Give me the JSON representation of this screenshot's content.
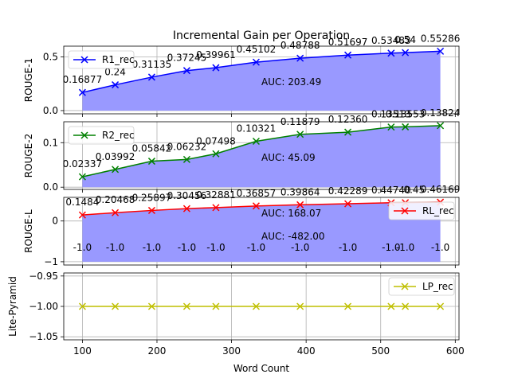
{
  "figure": {
    "title": "Incremental Gain per Operation",
    "xlabel": "Word Count"
  },
  "chart_data": [
    {
      "type": "line",
      "ylabel": "ROUGE-1",
      "series": [
        {
          "name": "R1_rec",
          "color": "#0000ff",
          "x": [
            100,
            144,
            193,
            240,
            279,
            333,
            392,
            456,
            514,
            533,
            580
          ],
          "values": [
            0.16877,
            0.24,
            0.31135,
            0.37245,
            0.39961,
            0.45102,
            0.48788,
            0.51697,
            0.53483,
            0.54,
            0.55286
          ]
        }
      ],
      "point_labels": [
        "0.16877",
        "",
        "0.31135",
        "0.37245",
        "0.39961",
        "0.45102",
        "0.48788",
        "0.51697",
        "0.53483",
        "",
        "0.55286"
      ],
      "extra_labels": [
        {
          "text": "0.24",
          "x": 144,
          "y": 0.24
        },
        {
          "text": "0.54",
          "x": 533,
          "y": 0.54
        }
      ],
      "auc": "AUC: 203.49",
      "fill_color": "#9999ff",
      "xlim": [
        75,
        605
      ],
      "ylim": [
        -0.03,
        0.6
      ],
      "yticks": [
        0.0,
        0.5
      ],
      "ytick_labels": [
        "0.0",
        "0.5"
      ],
      "legend": "upper left",
      "grid": true
    },
    {
      "type": "line",
      "ylabel": "ROUGE-2",
      "series": [
        {
          "name": "R2_rec",
          "color": "#008000",
          "x": [
            100,
            144,
            193,
            240,
            279,
            333,
            392,
            456,
            514,
            533,
            580
          ],
          "values": [
            0.02337,
            0.03992,
            0.05842,
            0.06232,
            0.07498,
            0.10321,
            0.11879,
            0.1236,
            0.13513,
            0.13553,
            0.13824
          ]
        }
      ],
      "point_labels": [
        "0.02337",
        "0.03992",
        "0.05842",
        "0.06232",
        "0.07498",
        "0.10321",
        "0.11879",
        "0.12360",
        "0.13513",
        "0.13553",
        "0.13824"
      ],
      "extra_labels": [],
      "auc": "AUC: 45.09",
      "fill_color": "#9999ff",
      "xlim": [
        75,
        605
      ],
      "ylim": [
        -0.005,
        0.147
      ],
      "yticks": [
        0.0,
        0.1
      ],
      "ytick_labels": [
        "0.0",
        "0.1"
      ],
      "legend": "upper left",
      "grid": true
    },
    {
      "type": "line",
      "ylabel": "ROUGE-L",
      "series": [
        {
          "name": "RL_rec",
          "color": "#ff0000",
          "x": [
            100,
            144,
            193,
            240,
            279,
            333,
            392,
            456,
            514,
            533,
            580
          ],
          "values": [
            0.1484,
            0.20468,
            0.25897,
            0.30456,
            0.32881,
            0.36857,
            0.39864,
            0.42289,
            0.4474,
            0.45,
            0.46169
          ]
        }
      ],
      "point_labels": [
        "0.1484",
        "0.20468",
        "0.25897",
        "0.30456",
        "0.32881",
        "0.36857",
        "0.39864",
        "0.42289",
        "0.44740",
        "",
        "0.46169"
      ],
      "extra_labels": [
        {
          "text": "0.45",
          "x": 545,
          "y": 0.45
        }
      ],
      "second_series_labels": {
        "text": "-1.0",
        "x": [
          100,
          144,
          193,
          240,
          279,
          333,
          392,
          456,
          514,
          533,
          580
        ],
        "y": -1.0
      },
      "auc": "AUC: 168.07",
      "auc2": "AUC: -482.00",
      "fill_color": "#9999ff",
      "fill_to": -1.0,
      "xlim": [
        75,
        605
      ],
      "ylim": [
        -1.08,
        0.58
      ],
      "yticks": [
        -1,
        0
      ],
      "ytick_labels": [
        "−1",
        "0"
      ],
      "legend": "upper right",
      "grid": true
    },
    {
      "type": "line",
      "ylabel": "Lite-Pyramid",
      "series": [
        {
          "name": "LP_rec",
          "color": "#bfbf00",
          "x": [
            100,
            144,
            193,
            240,
            279,
            333,
            392,
            456,
            514,
            533,
            580
          ],
          "values": [
            -1.0,
            -1.0,
            -1.0,
            -1.0,
            -1.0,
            -1.0,
            -1.0,
            -1.0,
            -1.0,
            -1.0,
            -1.0
          ]
        }
      ],
      "point_labels": [],
      "extra_labels": [],
      "auc": "",
      "xlim": [
        75,
        605
      ],
      "ylim": [
        -1.055,
        -0.945
      ],
      "yticks": [
        -1.05,
        -1.0,
        -0.95
      ],
      "ytick_labels": [
        "−1.05",
        "−1.00",
        "−0.95"
      ],
      "xticks": [
        100,
        200,
        300,
        400,
        500,
        600
      ],
      "xtick_labels": [
        "100",
        "200",
        "300",
        "400",
        "500",
        "600"
      ],
      "legend": "upper right",
      "grid": true
    }
  ]
}
